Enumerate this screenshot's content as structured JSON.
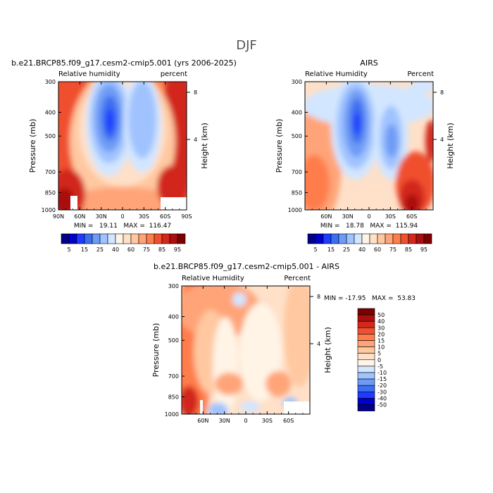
{
  "page": {
    "title": "DJF"
  },
  "colors": {
    "plot_levels_a": [
      "#00008b",
      "#0000cd",
      "#1e3cff",
      "#3c6ef0",
      "#6e9bf5",
      "#a0c3ff",
      "#d2e6ff",
      "#fff4e6",
      "#ffe0c8",
      "#ffc8a0",
      "#ffa478",
      "#ff7d4b",
      "#f0502d",
      "#d2281e",
      "#aa0f0f",
      "#7d0000"
    ],
    "plot_levels_b": [
      "#00008b",
      "#0000cd",
      "#1e3cff",
      "#3c6ef0",
      "#6e9bf5",
      "#a0c3ff",
      "#d2e6ff",
      "#fff4e6",
      "#ffe0c8",
      "#ffc8a0",
      "#ffa478",
      "#ff7d4b",
      "#f0502d",
      "#d2281e",
      "#aa0f0f",
      "#7d0000"
    ]
  },
  "chart_data": [
    {
      "type": "heatmap",
      "title": "b.e21.BRCP85.f09_g17.cesm2-cmip5.001 (yrs 2006-2025)",
      "left_subtitle": "Relative humidity",
      "right_subtitle": "percent",
      "ylabel": "Pressure (mb)",
      "y2label": "Height (km)",
      "x_ticks": [
        "90N",
        "60N",
        "30N",
        "0",
        "30S",
        "60S",
        "90S"
      ],
      "x_range_deg": [
        90,
        -90
      ],
      "y_ticks": [
        "300",
        "400",
        "500",
        "700",
        "850",
        "1000"
      ],
      "y_tick_values": [
        300,
        400,
        500,
        700,
        850,
        1000
      ],
      "y2_ticks": [
        "8",
        "4"
      ],
      "min_max_text": "MIN =   19.11   MAX =  116.47",
      "min": 19.11,
      "max": 116.47,
      "colorbar": {
        "orientation": "horizontal",
        "labels": [
          "5",
          "15",
          "25",
          "40",
          "60",
          "75",
          "85",
          "95"
        ]
      }
    },
    {
      "type": "heatmap",
      "title": "AIRS",
      "left_subtitle": "Relative Humidity",
      "right_subtitle": "Percent",
      "ylabel": "Pressure (mb)",
      "y2label": "Height (km)",
      "x_ticks": [
        "60N",
        "30N",
        "0",
        "30S",
        "60S"
      ],
      "x_tick_values_deg": [
        60,
        30,
        0,
        -30,
        -60
      ],
      "x_range_deg": [
        90,
        -90
      ],
      "y_ticks": [
        "300",
        "400",
        "500",
        "700",
        "850",
        "1000"
      ],
      "y_tick_values": [
        300,
        400,
        500,
        700,
        850,
        1000
      ],
      "y2_ticks": [
        "8",
        "4"
      ],
      "min_max_text": "MIN =   18.78   MAX =  115.94",
      "min": 18.78,
      "max": 115.94,
      "colorbar": {
        "orientation": "horizontal",
        "labels": [
          "5",
          "15",
          "25",
          "40",
          "60",
          "75",
          "85",
          "95"
        ]
      }
    },
    {
      "type": "heatmap",
      "title": "b.e21.BRCP85.f09_g17.cesm2-cmip5.001 - AIRS",
      "left_subtitle": "Relative Humidity",
      "right_subtitle": "Percent",
      "ylabel": "Pressure (mb)",
      "y2label": "Height (km)",
      "x_ticks": [
        "60N",
        "30N",
        "0",
        "30S",
        "60S"
      ],
      "x_tick_values_deg": [
        60,
        30,
        0,
        -30,
        -60
      ],
      "x_range_deg": [
        90,
        -90
      ],
      "y_ticks": [
        "300",
        "400",
        "500",
        "700",
        "850",
        "1000"
      ],
      "y_tick_values": [
        300,
        400,
        500,
        700,
        850,
        1000
      ],
      "y2_ticks": [
        "8",
        "4"
      ],
      "min_max_text": "MIN = -17.95   MAX =  53.83",
      "min": -17.95,
      "max": 53.83,
      "colorbar": {
        "orientation": "vertical",
        "labels": [
          "50",
          "40",
          "30",
          "20",
          "15",
          "10",
          "5",
          "0",
          "-5",
          "-10",
          "-15",
          "-20",
          "-30",
          "-40",
          "-50"
        ],
        "colors": [
          "#7d0000",
          "#aa0f0f",
          "#d2281e",
          "#f0502d",
          "#ff7d4b",
          "#ffa478",
          "#ffc8a0",
          "#ffe0c8",
          "#fff4e6",
          "#d2e6ff",
          "#a0c3ff",
          "#6e9bf5",
          "#3c6ef0",
          "#1e3cff",
          "#0000cd",
          "#00008b"
        ]
      }
    }
  ]
}
